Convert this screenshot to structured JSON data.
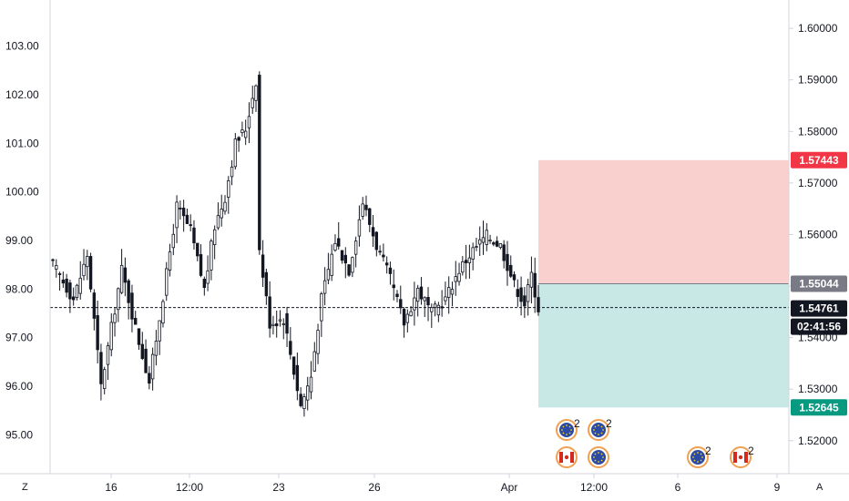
{
  "chart_data": {
    "type": "candlestick",
    "left_axis": {
      "ticks": [
        "103.00",
        "102.00",
        "101.00",
        "100.00",
        "99.00",
        "98.00",
        "97.00",
        "96.00",
        "95.00"
      ],
      "range": [
        94.2,
        103.95
      ]
    },
    "right_axis": {
      "ticks": [
        "1.60000",
        "1.59000",
        "1.58000",
        "1.57000",
        "1.56000",
        "1.55000",
        "1.54000",
        "1.53000",
        "1.52000"
      ],
      "range": [
        1.5136,
        1.6055
      ]
    },
    "x_ticks": [
      "16",
      "12:00",
      "23",
      "26",
      "Apr",
      "12:00",
      "6",
      "9"
    ],
    "current_price": 97.62,
    "badges": {
      "stop_loss": "1.57443",
      "entry": "1.55044",
      "current": "1.54761",
      "countdown": "02:41:56",
      "take_profit": "1.52645"
    },
    "position": {
      "stop": 1.57443,
      "entry": 1.55044,
      "target": 1.52645
    },
    "events": [
      {
        "icon": "eu-flag-icon",
        "count": "2"
      },
      {
        "icon": "eu-flag-icon",
        "count": "2"
      },
      {
        "icon": "canada-flag-icon",
        "count": ""
      },
      {
        "icon": "eu-flag-icon",
        "count": ""
      },
      {
        "icon": "eu-flag-icon",
        "count": "2"
      },
      {
        "icon": "canada-flag-icon",
        "count": "2"
      }
    ],
    "corner_left": "Z",
    "corner_right": "A",
    "colors": {
      "up": "#ffffff",
      "down": "#131722",
      "stop_zone": "#f9d0ce",
      "target_zone": "#c7e8e5",
      "stop_badge": "#f23645",
      "entry_badge": "#787b86",
      "current_badge": "#131722",
      "target_badge": "#089981"
    }
  }
}
